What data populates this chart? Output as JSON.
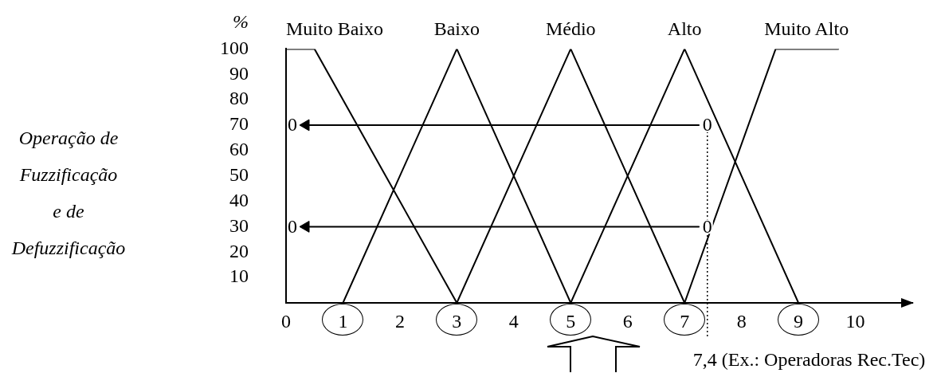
{
  "chart_data": {
    "type": "line",
    "ylabel": "%",
    "annotations": [
      "Operação de Fuzzificação e de Defuzzificação",
      {
        "text": "0",
        "y": 70
      },
      {
        "text": "0",
        "x": 7.4,
        "y": 70
      },
      {
        "text": "0",
        "y": 30
      },
      {
        "text": "0",
        "x": 7.4,
        "y": 30
      }
    ],
    "xlim": [
      0,
      11
    ],
    "xticks": [
      0,
      1,
      2,
      3,
      4,
      5,
      6,
      7,
      8,
      9,
      10
    ],
    "ylim": [
      0,
      100
    ],
    "yticks": [
      10,
      20,
      30,
      40,
      50,
      60,
      70,
      80,
      90,
      100
    ],
    "ref_lines": [
      {
        "axis": "x",
        "value": 7.4,
        "label": "7,4 (Ex.: Operadoras Rec.Tec)",
        "line_style": "dotted",
        "color": "#000000"
      }
    ],
    "series": [
      {
        "name": "Muito Baixo",
        "color": "#000000",
        "x": [
          0,
          0.5,
          3
        ],
        "values": [
          100,
          100,
          0
        ]
      },
      {
        "name": "Baixo",
        "color": "#000000",
        "x": [
          1,
          3,
          5
        ],
        "values": [
          0,
          100,
          0
        ]
      },
      {
        "name": "Médio",
        "color": "#000000",
        "x": [
          3,
          5,
          7
        ],
        "values": [
          0,
          100,
          0
        ]
      },
      {
        "name": "Alto",
        "color": "#000000",
        "x": [
          5,
          7,
          9
        ],
        "values": [
          0,
          100,
          0
        ]
      },
      {
        "name": "Muito Alto",
        "color": "#000000",
        "x": [
          7,
          8.6,
          9.7
        ],
        "values": [
          0,
          100,
          100
        ]
      },
      {
        "color": "#000000",
        "x": [
          7.25,
          0.35
        ],
        "values": [
          70,
          70
        ],
        "marker": "triangle"
      },
      {
        "color": "#000000",
        "x": [
          7.25,
          0.35
        ],
        "values": [
          30,
          30
        ],
        "marker": "triangle"
      }
    ]
  }
}
